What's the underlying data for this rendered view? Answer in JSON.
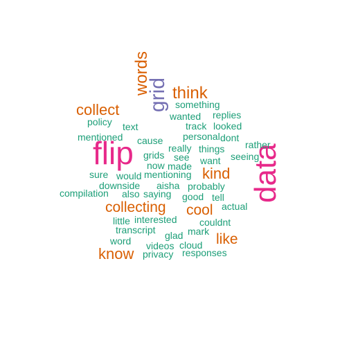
{
  "palette": {
    "pink": "#e7298a",
    "purple": "#7570b3",
    "orange": "#d95f02",
    "green": "#1b9e77"
  },
  "words": [
    {
      "text": "flip",
      "color": "pink"
    },
    {
      "text": "data",
      "color": "pink"
    },
    {
      "text": "grid",
      "color": "purple"
    },
    {
      "text": "words",
      "color": "orange"
    },
    {
      "text": "think",
      "color": "orange"
    },
    {
      "text": "collect",
      "color": "orange"
    },
    {
      "text": "kind",
      "color": "orange"
    },
    {
      "text": "collecting",
      "color": "orange"
    },
    {
      "text": "cool",
      "color": "orange"
    },
    {
      "text": "like",
      "color": "orange"
    },
    {
      "text": "know",
      "color": "orange"
    },
    {
      "text": "something",
      "color": "green"
    },
    {
      "text": "replies",
      "color": "green"
    },
    {
      "text": "wanted",
      "color": "green"
    },
    {
      "text": "policy",
      "color": "green"
    },
    {
      "text": "text",
      "color": "green"
    },
    {
      "text": "track",
      "color": "green"
    },
    {
      "text": "looked",
      "color": "green"
    },
    {
      "text": "mentioned",
      "color": "green"
    },
    {
      "text": "cause",
      "color": "green"
    },
    {
      "text": "dont",
      "color": "green"
    },
    {
      "text": "rather",
      "color": "green"
    },
    {
      "text": "really",
      "color": "green"
    },
    {
      "text": "things",
      "color": "green"
    },
    {
      "text": "personal",
      "color": "green"
    },
    {
      "text": "seeing",
      "color": "green"
    },
    {
      "text": "grids",
      "color": "green"
    },
    {
      "text": "see",
      "color": "green"
    },
    {
      "text": "want",
      "color": "green"
    },
    {
      "text": "now",
      "color": "green"
    },
    {
      "text": "made",
      "color": "green"
    },
    {
      "text": "sure",
      "color": "green"
    },
    {
      "text": "would",
      "color": "green"
    },
    {
      "text": "mentioning",
      "color": "green"
    },
    {
      "text": "downside",
      "color": "green"
    },
    {
      "text": "aisha",
      "color": "green"
    },
    {
      "text": "probably",
      "color": "green"
    },
    {
      "text": "compilation",
      "color": "green"
    },
    {
      "text": "also",
      "color": "green"
    },
    {
      "text": "saying",
      "color": "green"
    },
    {
      "text": "good",
      "color": "green"
    },
    {
      "text": "tell",
      "color": "green"
    },
    {
      "text": "actual",
      "color": "green"
    },
    {
      "text": "little",
      "color": "green"
    },
    {
      "text": "interested",
      "color": "green"
    },
    {
      "text": "couldnt",
      "color": "green"
    },
    {
      "text": "transcript",
      "color": "green"
    },
    {
      "text": "glad",
      "color": "green"
    },
    {
      "text": "mark",
      "color": "green"
    },
    {
      "text": "word",
      "color": "green"
    },
    {
      "text": "videos",
      "color": "green"
    },
    {
      "text": "cloud",
      "color": "green"
    },
    {
      "text": "privacy",
      "color": "green"
    },
    {
      "text": "responses",
      "color": "green"
    }
  ]
}
